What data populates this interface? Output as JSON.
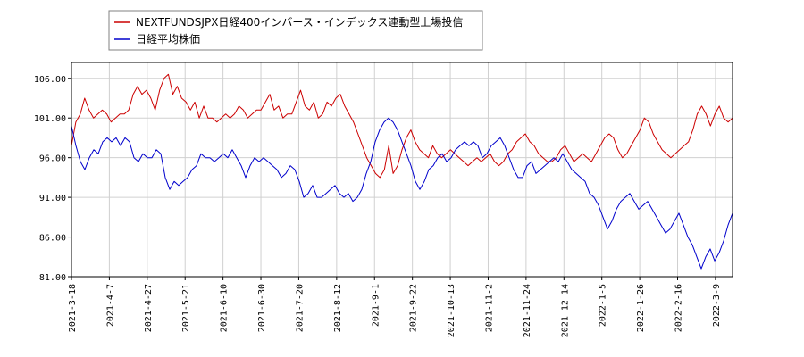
{
  "chart_data": {
    "type": "line",
    "title": "",
    "xlabel": "",
    "ylabel": "",
    "ylim": [
      81.0,
      108.0
    ],
    "y_ticks": [
      "81.00",
      "86.00",
      "91.00",
      "96.00",
      "101.00",
      "106.00"
    ],
    "x_tick_labels": [
      "2021-3-18",
      "2021-4-7",
      "2021-4-27",
      "2021-5-21",
      "2021-6-10",
      "2021-6-30",
      "2021-7-20",
      "2021-8-12",
      "2021-9-1",
      "2021-9-22",
      "2021-10-13",
      "2021-11-2",
      "2021-11-24",
      "2021-12-14",
      "2022-1-5",
      "2022-1-26",
      "2022-2-16",
      "2022-3-9"
    ],
    "grid": true,
    "legend_position": "top-left",
    "series": [
      {
        "name": "NEXTFUNDSJPX日経400インバース・インデックス連動型上場投信",
        "color": "#cc0000",
        "values": [
          97.5,
          100.5,
          101.5,
          103.5,
          102.0,
          101.0,
          101.5,
          102.0,
          101.5,
          100.5,
          101.0,
          101.5,
          101.5,
          102.0,
          104.0,
          105.0,
          104.0,
          104.5,
          103.5,
          102.0,
          104.5,
          106.0,
          106.5,
          104.0,
          105.0,
          103.5,
          103.0,
          102.0,
          103.0,
          101.0,
          102.5,
          101.0,
          101.0,
          100.5,
          101.0,
          101.5,
          101.0,
          101.5,
          102.5,
          102.0,
          101.0,
          101.5,
          102.0,
          102.0,
          103.0,
          104.0,
          102.0,
          102.5,
          101.0,
          101.5,
          101.5,
          103.0,
          104.5,
          102.5,
          102.0,
          103.0,
          101.0,
          101.5,
          103.0,
          102.5,
          103.5,
          104.0,
          102.5,
          101.5,
          100.5,
          99.0,
          97.5,
          96.0,
          95.0,
          94.0,
          93.5,
          94.5,
          97.5,
          94.0,
          95.0,
          97.0,
          98.5,
          99.5,
          98.0,
          97.0,
          96.5,
          96.0,
          97.5,
          96.5,
          96.0,
          96.5,
          97.0,
          96.5,
          96.0,
          95.5,
          95.0,
          95.5,
          96.0,
          95.5,
          96.0,
          96.5,
          95.5,
          95.0,
          95.5,
          96.5,
          97.0,
          98.0,
          98.5,
          99.0,
          98.0,
          97.5,
          96.5,
          96.0,
          95.5,
          95.5,
          96.0,
          97.0,
          97.5,
          96.5,
          95.5,
          96.0,
          96.5,
          96.0,
          95.5,
          96.5,
          97.5,
          98.5,
          99.0,
          98.5,
          97.0,
          96.0,
          96.5,
          97.5,
          98.5,
          99.5,
          101.0,
          100.5,
          99.0,
          98.0,
          97.0,
          96.5,
          96.0,
          96.5,
          97.0,
          97.5,
          98.0,
          99.5,
          101.5,
          102.5,
          101.5,
          100.0,
          101.5,
          102.5,
          101.0,
          100.5,
          101.0
        ]
      },
      {
        "name": "日経平均株価",
        "color": "#0000cc",
        "values": [
          100.0,
          97.5,
          95.5,
          94.5,
          96.0,
          97.0,
          96.5,
          98.0,
          98.5,
          98.0,
          98.5,
          97.5,
          98.5,
          98.0,
          96.0,
          95.5,
          96.5,
          96.0,
          96.0,
          97.0,
          96.5,
          93.5,
          92.0,
          93.0,
          92.5,
          93.0,
          93.5,
          94.5,
          95.0,
          96.5,
          96.0,
          96.0,
          95.5,
          96.0,
          96.5,
          96.0,
          97.0,
          96.0,
          95.0,
          93.5,
          95.0,
          96.0,
          95.5,
          96.0,
          95.5,
          95.0,
          94.5,
          93.5,
          94.0,
          95.0,
          94.5,
          93.0,
          91.0,
          91.5,
          92.5,
          91.0,
          91.0,
          91.5,
          92.0,
          92.5,
          91.5,
          91.0,
          91.5,
          90.5,
          91.0,
          92.0,
          94.0,
          95.5,
          98.0,
          99.5,
          100.5,
          101.0,
          100.5,
          99.5,
          98.0,
          96.5,
          95.0,
          93.0,
          92.0,
          93.0,
          94.5,
          95.0,
          96.0,
          96.5,
          95.5,
          96.0,
          97.0,
          97.5,
          98.0,
          97.5,
          98.0,
          97.5,
          96.0,
          96.5,
          97.5,
          98.0,
          98.5,
          97.5,
          96.0,
          94.5,
          93.5,
          93.5,
          95.0,
          95.5,
          94.0,
          94.5,
          95.0,
          95.5,
          96.0,
          95.5,
          96.5,
          95.5,
          94.5,
          94.0,
          93.5,
          93.0,
          91.5,
          91.0,
          90.0,
          88.5,
          87.0,
          88.0,
          89.5,
          90.5,
          91.0,
          91.5,
          90.5,
          89.5,
          90.0,
          90.5,
          89.5,
          88.5,
          87.5,
          86.5,
          87.0,
          88.0,
          89.0,
          87.5,
          86.0,
          85.0,
          83.5,
          82.0,
          83.5,
          84.5,
          83.0,
          84.0,
          85.5,
          87.5,
          89.0
        ]
      }
    ]
  },
  "legend": {
    "items": [
      {
        "label": "NEXTFUNDSJPX日経400インバース・インデックス連動型上場投信",
        "color": "#cc0000"
      },
      {
        "label": "日経平均株価",
        "color": "#0000cc"
      }
    ]
  }
}
